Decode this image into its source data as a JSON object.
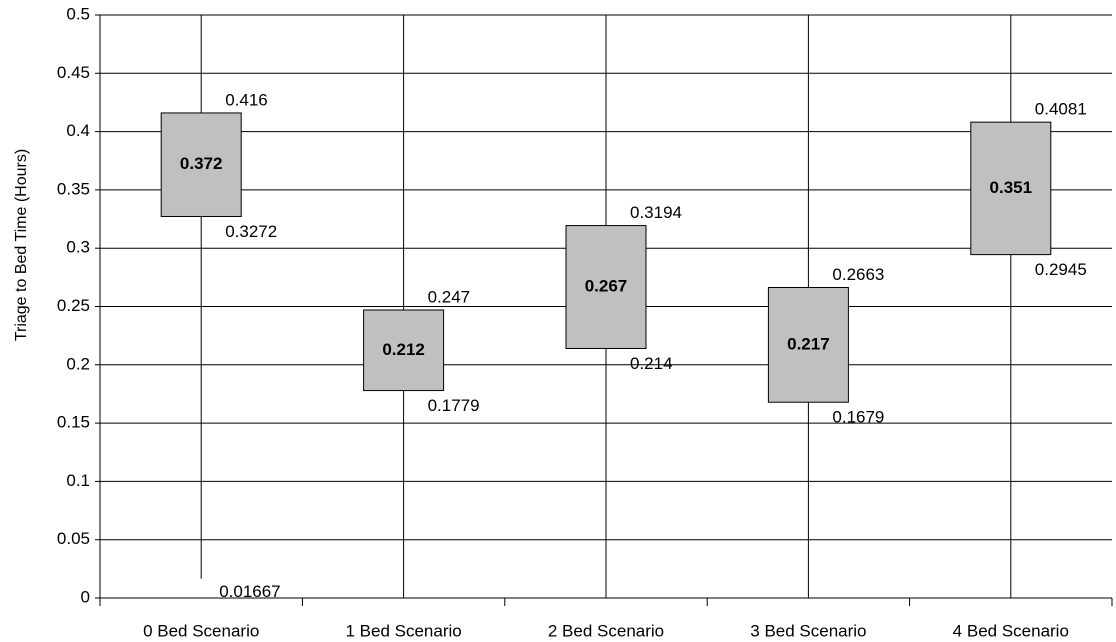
{
  "chart_data": {
    "type": "floating-box",
    "y_label": "Triage to Bed Time (Hours)",
    "categories": [
      "0 Bed Scenario",
      "1 Bed Scenario",
      "2 Bed Scenario",
      "3 Bed Scenario",
      "4 Bed Scenario"
    ],
    "low": [
      0.3272,
      0.1779,
      0.214,
      0.1679,
      0.2945
    ],
    "high": [
      0.416,
      0.247,
      0.3194,
      0.2663,
      0.4081
    ],
    "mean": [
      0.372,
      0.212,
      0.267,
      0.217,
      0.351
    ],
    "min": [
      0.01667,
      null,
      null,
      null,
      null
    ],
    "color": "#c0c0c0",
    "ylim": [
      0,
      0.5
    ],
    "yticks": [
      0,
      0.05,
      0.1,
      0.15,
      0.2,
      0.25,
      0.3,
      0.35,
      0.4,
      0.45,
      0.5
    ],
    "grid": true
  }
}
